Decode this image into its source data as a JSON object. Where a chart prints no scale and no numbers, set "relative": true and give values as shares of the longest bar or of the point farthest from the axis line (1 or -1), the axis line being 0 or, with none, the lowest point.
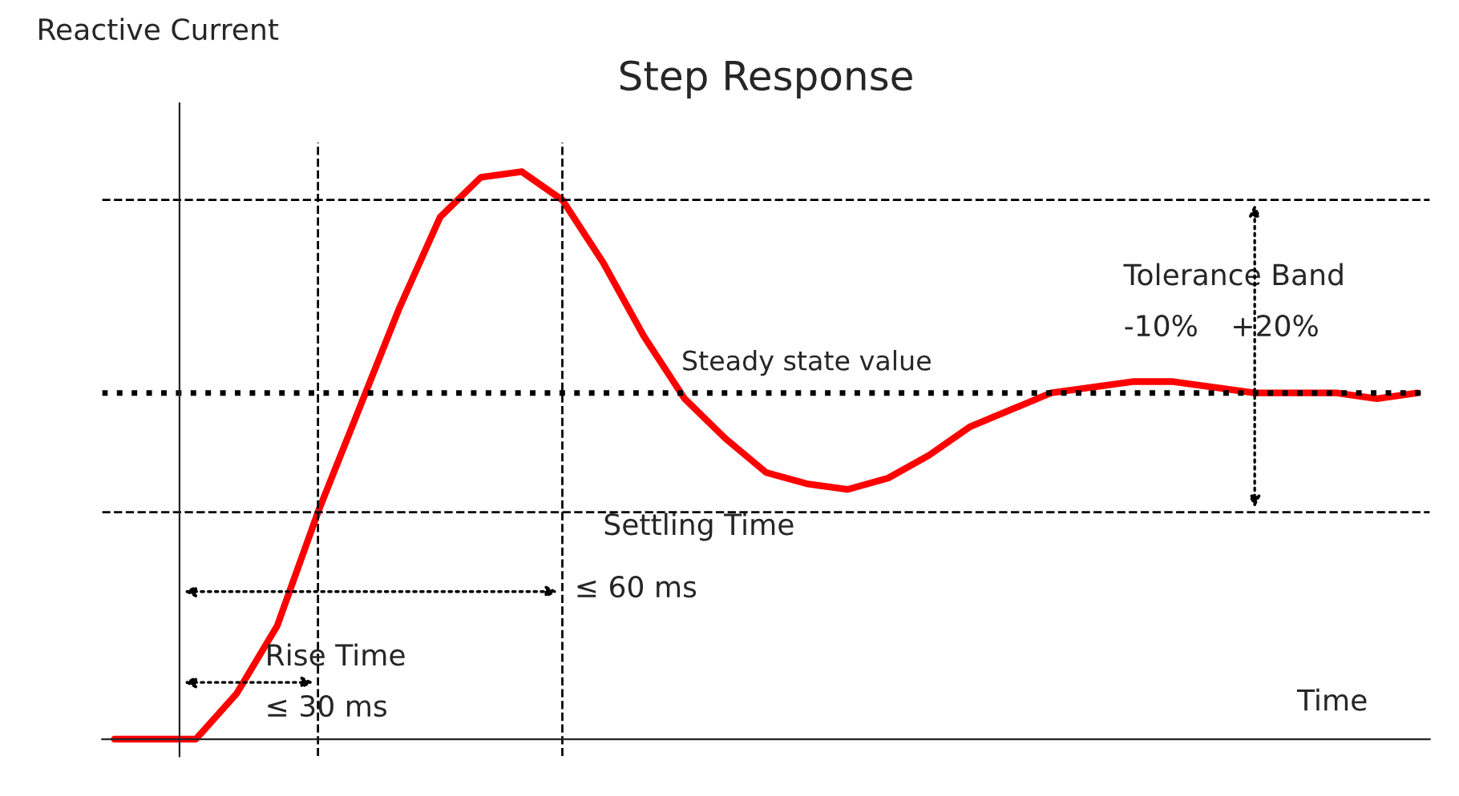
{
  "chart_data": {
    "type": "line",
    "title": "Step Response",
    "ylabel": "Reactive Current",
    "xlabel": "Time",
    "relative": true,
    "categories": [
      null,
      null,
      null,
      null,
      null,
      null,
      null,
      null,
      null,
      null,
      null,
      null,
      null,
      null,
      null,
      null,
      null,
      null,
      null,
      null,
      null,
      null,
      null,
      null,
      null,
      null,
      null,
      null,
      null,
      null,
      null,
      null,
      null
    ],
    "series": [
      {
        "color": "#ff0000",
        "values": [
          0,
          0,
          0,
          0.08,
          0.2,
          0.4,
          0.58,
          0.76,
          0.92,
          0.99,
          1,
          0.95,
          0.84,
          0.71,
          0.6,
          0.53,
          0.47,
          0.45,
          0.44,
          0.46,
          0.5,
          0.55,
          0.58,
          0.61,
          0.62,
          0.63,
          0.63,
          0.62,
          0.61,
          0.61,
          0.61,
          0.6,
          0.61
        ]
      }
    ],
    "ref_lines": [
      {
        "axis": "y",
        "value": 0.95,
        "label": null,
        "color": "#000000",
        "line_style": "dashed"
      },
      {
        "axis": "y",
        "value": 0.61,
        "label": "Steady state value",
        "color": "#000000",
        "line_style": "dotted"
      },
      {
        "axis": "y",
        "value": 0.4,
        "label": null,
        "color": "#000000",
        "line_style": "dashed"
      }
    ],
    "annotations": [
      "Tolerance Band",
      "-10%",
      "+20%",
      "Settling Time",
      "≤ 60 ms",
      "Rise Time",
      "≤ 30 ms"
    ],
    "grid": false,
    "marker": "none",
    "line_style": "solid"
  }
}
